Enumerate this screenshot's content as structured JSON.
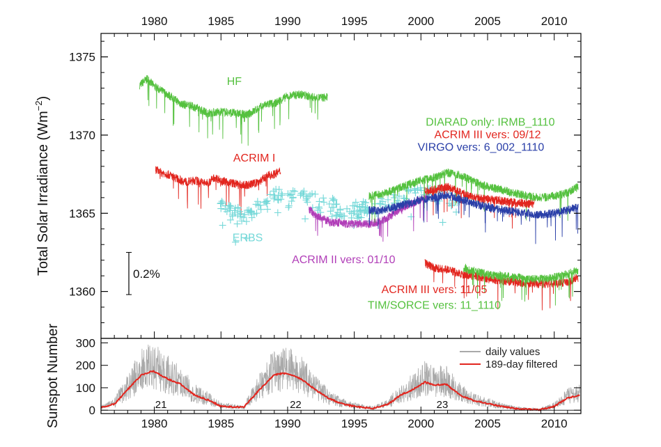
{
  "chart_data": [
    {
      "type": "line",
      "ylabel": "Total Solar Irradiance (Wm",
      "ylabel_sup": "−2",
      "ylabel_close": ")",
      "x_ticks": [
        1980,
        1985,
        1990,
        1995,
        2000,
        2005,
        2010
      ],
      "y_ticks": [
        1360,
        1365,
        1370,
        1375
      ],
      "xlim": [
        1976,
        2012
      ],
      "ylim": [
        1357,
        1376.5
      ],
      "scale_bar_label": "0.2%",
      "scale_bar_range": [
        1359.8,
        1362.5
      ],
      "colors": {
        "green": "#55c13f",
        "red": "#e2251e",
        "blue": "#2a3fa8",
        "cyan": "#74d8d8",
        "magenta": "#b13eb8"
      },
      "series": [
        {
          "name": "HF",
          "color": "green",
          "x": [
            1978.9,
            1979.5,
            1980.0,
            1981.0,
            1982.0,
            1983.0,
            1984.0,
            1985.0,
            1986.0,
            1987.0,
            1988.0,
            1988.5,
            1989.0,
            1990.0,
            1991.0,
            1992.0,
            1993.0
          ],
          "y": [
            1373.2,
            1373.6,
            1373.1,
            1372.6,
            1372.0,
            1371.8,
            1371.4,
            1371.5,
            1371.4,
            1371.3,
            1371.8,
            1372.0,
            1372.0,
            1372.5,
            1372.6,
            1372.4,
            1372.4
          ]
        },
        {
          "name": "ACRIM I",
          "color": "red",
          "x": [
            1980.1,
            1980.5,
            1981.0,
            1981.5,
            1982.0,
            1982.5,
            1983.0,
            1983.5,
            1984.0,
            1984.5,
            1985.0,
            1985.5,
            1986.0,
            1986.5,
            1987.0,
            1987.5,
            1988.0,
            1988.5,
            1989.0,
            1989.5
          ],
          "y": [
            1367.8,
            1367.6,
            1367.5,
            1367.3,
            1367.1,
            1367.0,
            1367.1,
            1367.0,
            1366.9,
            1367.3,
            1367.1,
            1367.0,
            1366.9,
            1366.8,
            1366.8,
            1366.9,
            1367.1,
            1367.4,
            1367.5,
            1367.7
          ]
        },
        {
          "name": "ERBS",
          "color": "cyan",
          "x": [
            1984.8,
            1985.5,
            1986.0,
            1986.5,
            1987.0,
            1987.5,
            1988.0,
            1988.5,
            1989.0,
            1989.5,
            1990.0,
            1990.5,
            1991.0,
            1991.5,
            1992.0,
            1992.5,
            1993.0,
            1993.5,
            1994.0,
            1994.5,
            1995.0,
            1995.5,
            1996.0,
            1996.5,
            1997.0,
            1997.5,
            1998.0,
            1998.5,
            1999.0,
            1999.5,
            2000.0,
            2000.5,
            2001.0,
            2001.5,
            2002.0,
            2002.5,
            2003.0
          ],
          "y": [
            1365.4,
            1365.1,
            1364.9,
            1364.9,
            1365.0,
            1365.2,
            1365.5,
            1365.8,
            1366.0,
            1366.0,
            1365.9,
            1366.0,
            1366.0,
            1365.8,
            1365.7,
            1365.6,
            1365.5,
            1365.4,
            1365.3,
            1365.3,
            1365.2,
            1365.2,
            1365.2,
            1365.4,
            1365.5,
            1365.7,
            1365.9,
            1366.0,
            1366.1,
            1366.1,
            1366.2,
            1366.1,
            1366.0,
            1366.1,
            1366.0,
            1366.0,
            1366.0
          ]
        },
        {
          "name": "ACRIM II vers: 01/10",
          "color": "magenta",
          "x": [
            1991.6,
            1992.0,
            1992.5,
            1993.0,
            1993.5,
            1994.0,
            1994.5,
            1995.0,
            1995.5,
            1996.0,
            1996.5,
            1997.0,
            1997.5,
            1998.0,
            1998.5,
            1999.0,
            1999.5,
            2000.0,
            2000.5
          ],
          "y": [
            1365.3,
            1364.9,
            1364.7,
            1364.5,
            1364.4,
            1364.4,
            1364.3,
            1364.3,
            1364.3,
            1364.3,
            1364.4,
            1364.5,
            1364.7,
            1365.0,
            1365.3,
            1365.5,
            1365.7,
            1365.9,
            1365.9
          ]
        },
        {
          "name": "DIARAD only: IRMB_1110",
          "color": "green",
          "x": [
            1996.1,
            1997.0,
            1998.0,
            1999.0,
            2000.0,
            2001.0,
            2002.0,
            2003.0,
            2004.0,
            2005.0,
            2006.0,
            2007.0,
            2008.0,
            2009.0,
            2010.0,
            2011.0,
            2011.8
          ],
          "y": [
            1366.1,
            1366.2,
            1366.5,
            1366.8,
            1367.1,
            1367.3,
            1367.6,
            1367.4,
            1367.0,
            1366.7,
            1366.5,
            1366.3,
            1366.1,
            1366.0,
            1366.1,
            1366.3,
            1366.7
          ]
        },
        {
          "name": "ACRIM III vers: 09/12",
          "color": "red",
          "x": [
            2000.3,
            2001.0,
            2002.0,
            2003.0,
            2004.0,
            2005.0,
            2006.0,
            2007.0,
            2008.0,
            2008.5
          ],
          "y": [
            1366.4,
            1366.5,
            1366.7,
            1366.3,
            1366.0,
            1365.9,
            1365.8,
            1365.7,
            1365.6,
            1365.6
          ]
        },
        {
          "name": "VIRGO vers: 6_002_1110",
          "color": "blue",
          "x": [
            1996.1,
            1997.0,
            1998.0,
            1999.0,
            2000.0,
            2001.0,
            2002.0,
            2003.0,
            2004.0,
            2005.0,
            2006.0,
            2007.0,
            2008.0,
            2009.0,
            2010.0,
            2011.0,
            2011.8
          ],
          "y": [
            1365.2,
            1365.2,
            1365.4,
            1365.6,
            1365.9,
            1366.0,
            1366.2,
            1365.9,
            1365.6,
            1365.4,
            1365.2,
            1365.1,
            1365.0,
            1364.9,
            1365.0,
            1365.2,
            1365.4
          ]
        },
        {
          "name": "ACRIM III vers: 11/05",
          "color": "red",
          "x": [
            2000.3,
            2001.0,
            2002.0,
            2003.0,
            2004.0,
            2005.0,
            2006.0,
            2007.0,
            2008.0,
            2009.0,
            2010.0,
            2011.0,
            2011.8
          ],
          "y": [
            1361.8,
            1361.5,
            1361.4,
            1361.1,
            1361.0,
            1360.8,
            1360.7,
            1360.6,
            1360.5,
            1360.5,
            1360.5,
            1360.6,
            1360.9
          ]
        },
        {
          "name": "TIM/SORCE vers: 11_1110",
          "color": "green",
          "x": [
            2003.2,
            2004.0,
            2005.0,
            2006.0,
            2007.0,
            2008.0,
            2009.0,
            2010.0,
            2011.0,
            2011.8
          ],
          "y": [
            1361.5,
            1361.3,
            1361.1,
            1361.0,
            1360.9,
            1360.8,
            1360.8,
            1360.9,
            1361.1,
            1361.4
          ]
        }
      ],
      "annotations": [
        {
          "text": "HF",
          "color": "green",
          "x": 1986.0,
          "y": 1373.2
        },
        {
          "text": "ACRIM I",
          "color": "red",
          "x": 1987.5,
          "y": 1368.3
        },
        {
          "text": "ERBS",
          "color": "cyan",
          "x": 1987.0,
          "y": 1363.2
        },
        {
          "text": "ACRIM II vers: 01/10",
          "color": "magenta",
          "x": 1994.2,
          "y": 1361.8
        },
        {
          "text": "DIARAD only: IRMB_1110",
          "color": "green",
          "x": 2005.2,
          "y": 1370.6
        },
        {
          "text": "ACRIM III vers: 09/12",
          "color": "red",
          "x": 2005.0,
          "y": 1369.8
        },
        {
          "text": "VIRGO vers: 6_002_1110",
          "color": "blue",
          "x": 2004.5,
          "y": 1369.0
        },
        {
          "text": "ACRIM III vers: 11/05",
          "color": "red",
          "x": 2001.0,
          "y": 1359.9
        },
        {
          "text": "TIM/SORCE vers: 11_1110",
          "color": "green",
          "x": 2001.0,
          "y": 1358.9
        }
      ]
    },
    {
      "type": "line",
      "ylabel": "Sunspot Number",
      "x_ticks": [
        1980,
        1985,
        1990,
        1995,
        2000,
        2005,
        2010
      ],
      "y_ticks": [
        0,
        100,
        200,
        300
      ],
      "xlim": [
        1976,
        2012
      ],
      "ylim": [
        -15,
        320
      ],
      "legend_position": "top-right",
      "series": [
        {
          "name": "daily values",
          "color": "#a9a9a9",
          "x": [
            1976.0,
            1977.0,
            1978.0,
            1979.0,
            1979.9,
            1981.0,
            1982.0,
            1983.0,
            1984.0,
            1985.0,
            1986.0,
            1986.7,
            1988.0,
            1989.0,
            1989.9,
            1991.0,
            1992.0,
            1993.0,
            1994.0,
            1995.0,
            1996.4,
            1997.5,
            1998.5,
            1999.5,
            2000.3,
            2001.0,
            2001.9,
            2003.0,
            2004.0,
            2005.0,
            2006.0,
            2007.0,
            2008.0,
            2008.9,
            2010.0,
            2011.0,
            2011.8
          ],
          "y": [
            12,
            27,
            92,
            155,
            175,
            140,
            115,
            68,
            46,
            18,
            14,
            13,
            98,
            158,
            165,
            140,
            95,
            55,
            30,
            17,
            8,
            26,
            68,
            95,
            125,
            112,
            115,
            65,
            42,
            30,
            17,
            8,
            4,
            2,
            17,
            55,
            65
          ]
        },
        {
          "name": "189-day filtered",
          "color": "#e2251e",
          "x": [
            1976.0,
            1977.0,
            1978.0,
            1979.0,
            1979.9,
            1981.0,
            1982.0,
            1983.0,
            1984.0,
            1985.0,
            1986.0,
            1986.7,
            1988.0,
            1989.0,
            1989.9,
            1991.0,
            1992.0,
            1993.0,
            1994.0,
            1995.0,
            1996.4,
            1997.5,
            1998.5,
            1999.5,
            2000.3,
            2001.0,
            2001.9,
            2003.0,
            2004.0,
            2005.0,
            2006.0,
            2007.0,
            2008.0,
            2008.9,
            2010.0,
            2011.0,
            2011.8
          ],
          "y": [
            12,
            27,
            92,
            155,
            175,
            140,
            115,
            68,
            46,
            18,
            14,
            13,
            98,
            158,
            165,
            140,
            95,
            55,
            30,
            17,
            8,
            26,
            68,
            95,
            125,
            112,
            115,
            65,
            42,
            30,
            17,
            8,
            4,
            2,
            17,
            55,
            65
          ]
        }
      ],
      "cycle_labels": [
        {
          "text": "21",
          "x": 1980.5
        },
        {
          "text": "22",
          "x": 1990.6
        },
        {
          "text": "23",
          "x": 2001.6
        }
      ]
    }
  ]
}
